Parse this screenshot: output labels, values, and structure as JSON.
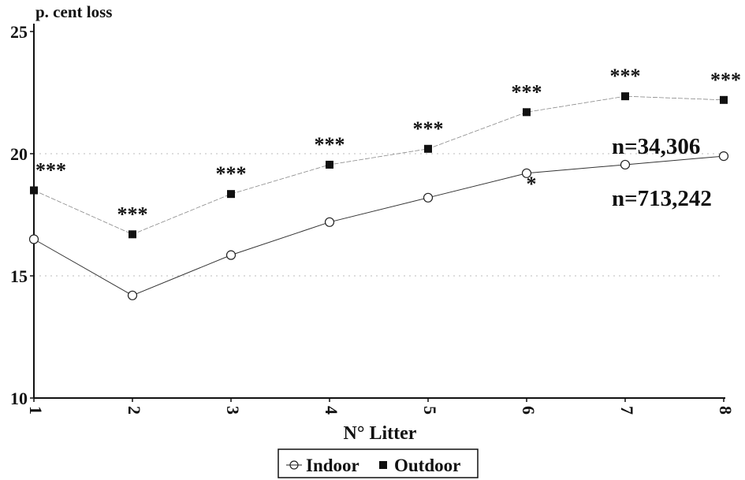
{
  "chart_data": {
    "type": "line",
    "title": "",
    "ylabel": "p. cent loss",
    "xlabel": "N° Litter",
    "categories": [
      "1",
      "2",
      "3",
      "4",
      "5",
      "6",
      "7",
      "8"
    ],
    "ylim": [
      10,
      25
    ],
    "yticks": [
      "10",
      "15",
      "20",
      "25"
    ],
    "grid": "dotted horizontal",
    "series": [
      {
        "name": "Indoor",
        "marker": "open-circle",
        "values": [
          16.5,
          14.2,
          15.85,
          17.2,
          18.2,
          19.2,
          19.55,
          19.9
        ],
        "annotation": "n=713,242"
      },
      {
        "name": "Outdoor",
        "marker": "filled-square",
        "values": [
          18.5,
          16.7,
          18.35,
          19.55,
          20.2,
          21.7,
          22.35,
          22.2
        ],
        "annotation": "n=34,306"
      }
    ],
    "significance": [
      "***",
      "***",
      "***",
      "***",
      "***",
      "***",
      "***",
      "***"
    ],
    "indoor_marker_6": "*",
    "legend_position": "bottom-center"
  }
}
